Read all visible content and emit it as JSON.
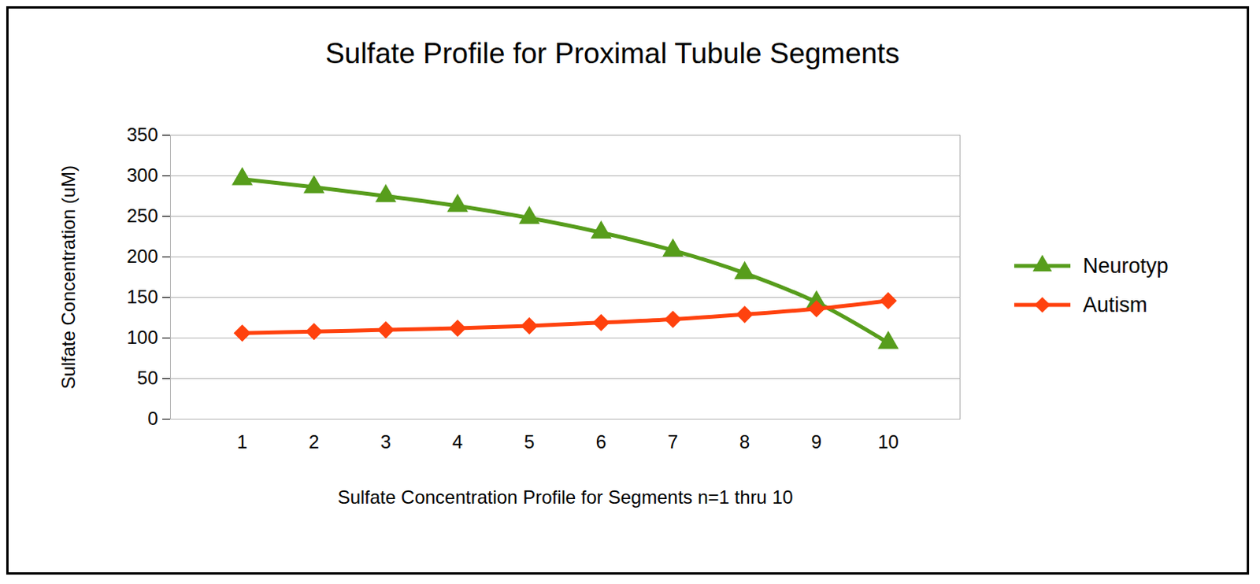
{
  "chart_data": {
    "type": "line",
    "title": "Sulfate Profile for Proximal Tubule Segments",
    "x_label": "Sulfate Concentration Profile for Segments n=1 thru 10",
    "y_label": "Sulfate Concentration (uM)",
    "x": [
      1,
      2,
      3,
      4,
      5,
      6,
      7,
      8,
      9,
      10
    ],
    "series": [
      {
        "name": "Neurotyp",
        "color": "#579d1c",
        "marker": "triangle",
        "line_style": "solid",
        "values": [
          296,
          286,
          275,
          263,
          248,
          230,
          208,
          180,
          144,
          94
        ]
      },
      {
        "name": "Autism",
        "color": "#ff420e",
        "marker": "diamond",
        "line_style": "solid",
        "values": [
          106,
          108,
          110,
          112,
          115,
          119,
          123,
          129,
          136,
          146
        ]
      }
    ],
    "xlim": [
      0,
      11
    ],
    "xticks": [
      1,
      2,
      3,
      4,
      5,
      6,
      7,
      8,
      9,
      10
    ],
    "ylim": [
      0,
      350
    ],
    "yticks": [
      0,
      50,
      100,
      150,
      200,
      250,
      300,
      350
    ],
    "grid": true,
    "legend": "right"
  }
}
